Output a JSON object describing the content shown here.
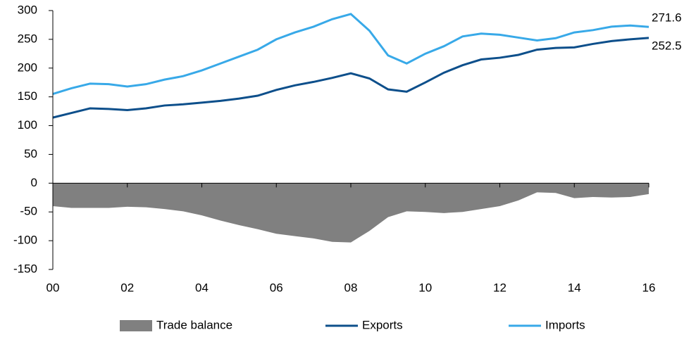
{
  "chart_data": {
    "type": "line",
    "x": [
      0,
      0.5,
      1,
      1.5,
      2,
      2.5,
      3,
      3.5,
      4,
      4.5,
      5,
      5.5,
      6,
      6.5,
      7,
      7.5,
      8,
      8.5,
      9,
      9.5,
      10,
      10.5,
      11,
      11.5,
      12,
      12.5,
      13,
      13.5,
      14,
      14.5,
      15,
      15.5,
      16
    ],
    "series": [
      {
        "name": "Trade balance",
        "color": "#808080",
        "kind": "area",
        "values": [
          -40,
          -43,
          -43,
          -43,
          -41,
          -42,
          -45,
          -49,
          -56,
          -65,
          -73,
          -80,
          -88,
          -92,
          -96,
          -102,
          -103,
          -83,
          -59,
          -49,
          -50,
          -52,
          -50,
          -45,
          -40,
          -30,
          -16,
          -17,
          -26,
          -24,
          -25,
          -24,
          -19
        ]
      },
      {
        "name": "Exports",
        "color": "#0d4f8b",
        "kind": "line",
        "values": [
          114,
          122,
          130,
          129,
          127,
          130,
          135,
          137,
          140,
          143,
          147,
          152,
          162,
          170,
          176,
          183,
          191,
          182,
          163,
          159,
          175,
          192,
          205,
          215,
          218,
          223,
          232,
          235,
          236,
          242,
          247,
          250,
          252.5
        ]
      },
      {
        "name": "Imports",
        "color": "#38a9e8",
        "kind": "line",
        "values": [
          155,
          165,
          173,
          172,
          168,
          172,
          180,
          186,
          196,
          208,
          220,
          232,
          250,
          262,
          272,
          285,
          294,
          265,
          222,
          208,
          225,
          238,
          255,
          260,
          258,
          253,
          248,
          252,
          262,
          266,
          272,
          274,
          271.6
        ]
      }
    ],
    "xlim": [
      0,
      16
    ],
    "xticks": [
      {
        "value": 0,
        "label": "00"
      },
      {
        "value": 2,
        "label": "02"
      },
      {
        "value": 4,
        "label": "04"
      },
      {
        "value": 6,
        "label": "06"
      },
      {
        "value": 8,
        "label": "08"
      },
      {
        "value": 10,
        "label": "10"
      },
      {
        "value": 12,
        "label": "12"
      },
      {
        "value": 14,
        "label": "14"
      },
      {
        "value": 16,
        "label": "16"
      }
    ],
    "ylim": [
      -150,
      300
    ],
    "yticks": [
      -150,
      -100,
      -50,
      0,
      50,
      100,
      150,
      200,
      250,
      300
    ]
  }
}
